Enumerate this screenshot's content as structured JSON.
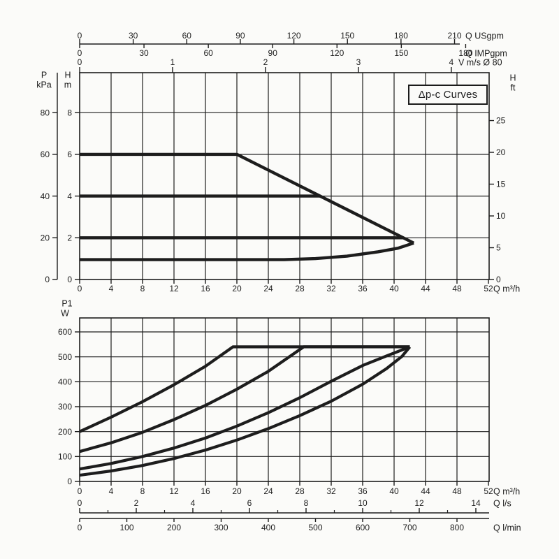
{
  "annotation_box": {
    "label": "Δp-c Curves"
  },
  "colors": {
    "ink": "#1d1d1d",
    "background": "#fbfbf9"
  },
  "labels": {
    "top_left_pressure": [
      "P",
      "kPa"
    ],
    "top_left_head": [
      "H",
      "m"
    ],
    "top_right_head": [
      "H",
      "ft"
    ],
    "bottom_left_power": [
      "P1",
      "W"
    ]
  },
  "chart_data": [
    {
      "id": "head-chart",
      "type": "line",
      "title": "Δp-c Curves",
      "xlabel": "Q m³/h",
      "ylabel": "H m",
      "xlim": [
        0,
        52
      ],
      "ylim": [
        0,
        10
      ],
      "grid": "on",
      "x_axis_main": {
        "unit": "Q m³/h",
        "ticks": [
          0,
          4,
          8,
          12,
          16,
          20,
          24,
          28,
          32,
          36,
          40,
          44,
          48,
          52
        ]
      },
      "x_axes_top": [
        {
          "unit": "Q USgpm",
          "ticks": [
            0,
            30,
            60,
            90,
            120,
            150,
            180,
            210
          ],
          "m3h_per_unit": 0.2271
        },
        {
          "unit": "Q IMPgpm",
          "ticks": [
            0,
            30,
            60,
            90,
            120,
            150,
            180
          ],
          "m3h_per_unit": 0.2728
        },
        {
          "unit": "V m/s Ø 80",
          "ticks": [
            0,
            1,
            2,
            3,
            4
          ],
          "m3h_per_unit": 11.82
        }
      ],
      "y_axis_kpa": {
        "unit": "P kPa",
        "ticks": [
          0,
          20,
          40,
          60,
          80
        ],
        "m_per_unit": 0.1
      },
      "y_axis_m": {
        "unit": "H m",
        "ticks": [
          0,
          2,
          4,
          6,
          8
        ]
      },
      "y_axis_ft": {
        "unit": "H ft",
        "ticks": [
          0,
          5,
          10,
          15,
          20,
          25
        ],
        "m_per_unit": 0.3048
      },
      "series": [
        {
          "name": "max-speed-curve",
          "points": [
            [
              0,
              6
            ],
            [
              20,
              6
            ],
            [
              42.5,
              1.75
            ]
          ]
        },
        {
          "name": "control-curve-4m",
          "points": [
            [
              0,
              4
            ],
            [
              30.6,
              4
            ]
          ]
        },
        {
          "name": "control-curve-2m",
          "points": [
            [
              0,
              2
            ],
            [
              41.2,
              2
            ]
          ]
        },
        {
          "name": "min-speed-curve",
          "points": [
            [
              0,
              0.95
            ],
            [
              26,
              0.95
            ],
            [
              30,
              1.0
            ],
            [
              34,
              1.12
            ],
            [
              38,
              1.33
            ],
            [
              40.5,
              1.5
            ],
            [
              42.5,
              1.75
            ]
          ]
        }
      ]
    },
    {
      "id": "power-chart",
      "type": "line",
      "title": "",
      "xlabel": "Q m³/h",
      "ylabel": "P1 W",
      "xlim": [
        0,
        52
      ],
      "ylim": [
        0,
        650
      ],
      "grid": "on",
      "x_axis_main": {
        "unit": "Q m³/h",
        "ticks": [
          0,
          4,
          8,
          12,
          16,
          20,
          24,
          28,
          32,
          36,
          40,
          44,
          48,
          52
        ]
      },
      "x_axes_bottom": [
        {
          "unit": "Q l/s",
          "ticks": [
            0,
            2,
            4,
            6,
            8,
            10,
            12,
            14
          ],
          "minor_ticks": [
            1,
            3,
            5,
            7,
            9,
            11,
            13
          ],
          "m3h_per_unit": 3.6
        },
        {
          "unit": "Q l/min",
          "ticks": [
            0,
            100,
            200,
            300,
            400,
            500,
            600,
            700,
            800
          ],
          "m3h_per_unit": 0.06
        }
      ],
      "y_axis_w": {
        "unit": "P1 W",
        "ticks": [
          0,
          100,
          200,
          300,
          400,
          500,
          600
        ]
      },
      "series": [
        {
          "name": "power-max-speed",
          "points": [
            [
              0,
              200
            ],
            [
              4,
              258
            ],
            [
              8,
              320
            ],
            [
              12,
              388
            ],
            [
              16,
              462
            ],
            [
              19.5,
              540
            ],
            [
              42,
              540
            ]
          ]
        },
        {
          "name": "power-curve-2",
          "points": [
            [
              0,
              120
            ],
            [
              4,
              155
            ],
            [
              8,
              197
            ],
            [
              12,
              248
            ],
            [
              16,
              305
            ],
            [
              20,
              370
            ],
            [
              24,
              442
            ],
            [
              28.5,
              540
            ],
            [
              42,
              540
            ]
          ]
        },
        {
          "name": "power-curve-3",
          "points": [
            [
              0,
              50
            ],
            [
              4,
              72
            ],
            [
              8,
              100
            ],
            [
              12,
              134
            ],
            [
              16,
              174
            ],
            [
              20,
              222
            ],
            [
              24,
              276
            ],
            [
              28,
              336
            ],
            [
              32,
              402
            ],
            [
              36,
              465
            ],
            [
              39,
              503
            ],
            [
              42,
              540
            ]
          ]
        },
        {
          "name": "power-min-speed",
          "points": [
            [
              0,
              25
            ],
            [
              4,
              42
            ],
            [
              8,
              64
            ],
            [
              12,
              92
            ],
            [
              16,
              126
            ],
            [
              20,
              166
            ],
            [
              24,
              212
            ],
            [
              28,
              264
            ],
            [
              32,
              322
            ],
            [
              36,
              390
            ],
            [
              39,
              452
            ],
            [
              41,
              502
            ],
            [
              42,
              540
            ]
          ]
        }
      ]
    }
  ]
}
